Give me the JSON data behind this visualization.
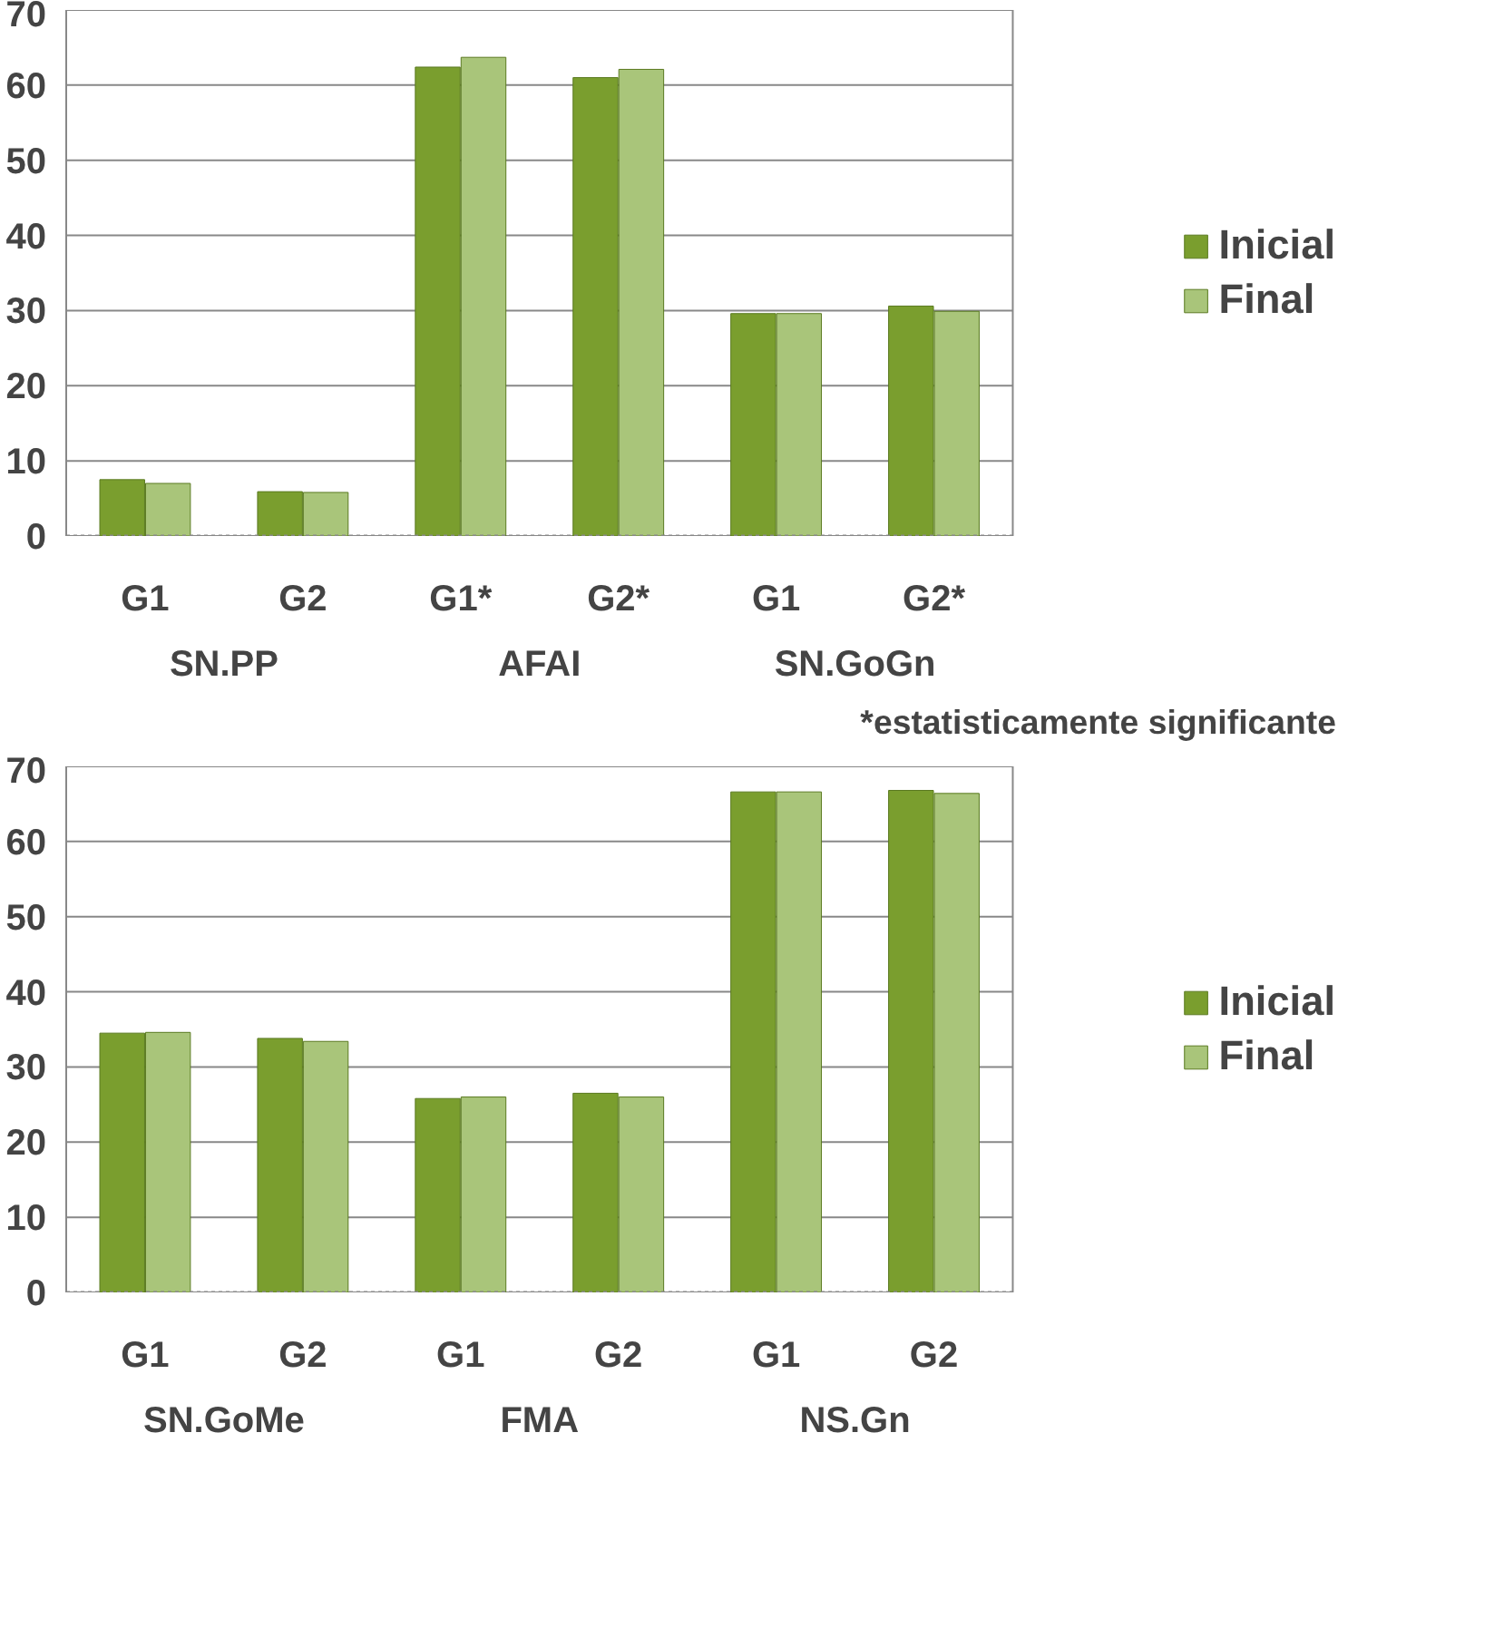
{
  "chart_data": [
    {
      "type": "bar",
      "categories": [
        "G1",
        "G2",
        "G1*",
        "G2*",
        "G1",
        "G2*"
      ],
      "ylim": [
        0,
        70
      ],
      "yticks": [
        0,
        10,
        20,
        30,
        40,
        50,
        60,
        70
      ],
      "grid": "y",
      "legend": "right",
      "series": [
        {
          "name": "Inicial",
          "color": "#7a9e2e",
          "values": [
            7.5,
            5.9,
            62.4,
            61.0,
            29.6,
            30.6
          ]
        },
        {
          "name": "Final",
          "color": "#a9c57a",
          "values": [
            7.0,
            5.8,
            63.7,
            62.1,
            29.6,
            29.9
          ]
        }
      ],
      "annotations": [
        "SN.PP",
        "AFAI",
        "SN.GoGn",
        "*estatisticamente significante"
      ]
    },
    {
      "type": "bar",
      "categories": [
        "G1",
        "G2",
        "G1",
        "G2",
        "G1",
        "G2"
      ],
      "ylim": [
        0,
        70
      ],
      "yticks": [
        0,
        10,
        20,
        30,
        40,
        50,
        60,
        70
      ],
      "grid": "y",
      "legend": "right",
      "series": [
        {
          "name": "Inicial",
          "color": "#7a9e2e",
          "values": [
            34.5,
            33.8,
            25.8,
            26.5,
            66.6,
            66.8
          ]
        },
        {
          "name": "Final",
          "color": "#a9c57a",
          "values": [
            34.6,
            33.4,
            26.0,
            26.0,
            66.6,
            66.4
          ]
        }
      ],
      "annotations": [
        "SN.GoMe",
        "FMA",
        "NS.Gn"
      ]
    }
  ]
}
